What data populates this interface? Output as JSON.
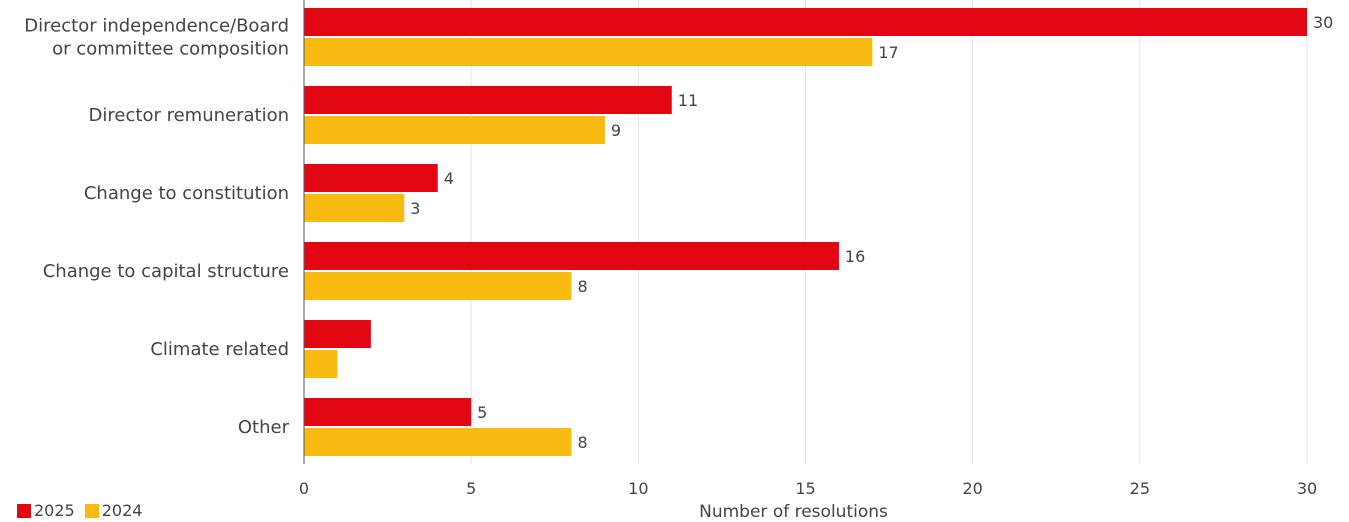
{
  "chart_data": {
    "type": "bar",
    "orientation": "horizontal",
    "categories": [
      [
        "Director independence/Board",
        "or committee composition"
      ],
      [
        "Director remuneration"
      ],
      [
        "Change to constitution"
      ],
      [
        "Change to capital structure"
      ],
      [
        "Climate related"
      ],
      [
        "Other"
      ]
    ],
    "series": [
      {
        "name": "2025",
        "color": "#e30613",
        "values": [
          30,
          11,
          4,
          16,
          2,
          5
        ],
        "labels": [
          "30",
          "11",
          "4",
          "16",
          "",
          "5"
        ]
      },
      {
        "name": "2024",
        "color": "#fbba12",
        "values": [
          17,
          9,
          3,
          8,
          1,
          8
        ],
        "labels": [
          "17",
          "9",
          "3",
          "8",
          "",
          "8"
        ]
      }
    ],
    "xlabel": "Number of resolutions",
    "xlim": [
      0,
      30
    ],
    "xticks": [
      0,
      5,
      10,
      15,
      20,
      25,
      30
    ],
    "grid": true,
    "legend_position": "bottom-left"
  }
}
